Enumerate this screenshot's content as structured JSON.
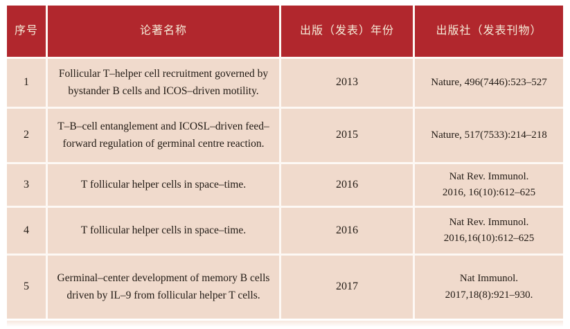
{
  "colors": {
    "header_bg": "#b1272d",
    "header_text": "#f5ecd9",
    "row_bg": "#f0dacc",
    "grid": "#fdf8f4",
    "body_text": "#211a14"
  },
  "table": {
    "columns": [
      {
        "label": "序号"
      },
      {
        "label": "论著名称"
      },
      {
        "label": "出版（发表）年份"
      },
      {
        "label": "出版社（发表刊物）"
      }
    ],
    "rows": [
      {
        "index": "1",
        "title": "Follicular T–helper cell recruitment governed by bystander B cells and ICOS–driven motility.",
        "year": "2013",
        "publisher": "Nature, 496(7446):523–527"
      },
      {
        "index": "2",
        "title": "T–B–cell entanglement and ICOSL–driven feed–forward regulation of germinal centre reaction.",
        "year": "2015",
        "publisher": "Nature, 517(7533):214–218"
      },
      {
        "index": "3",
        "title": "T follicular helper cells in space–time.",
        "year": "2016",
        "publisher": "Nat Rev. Immunol.\n2016, 16(10):612–625"
      },
      {
        "index": "4",
        "title": "T follicular helper cells in space–time.",
        "year": "2016",
        "publisher": "Nat Rev. Immunol.\n2016,16(10):612–625"
      },
      {
        "index": "5",
        "title": "Germinal–center development of memory B cells driven by IL–9 from follicular helper T cells.",
        "year": "2017",
        "publisher": "Nat Immunol.\n2017,18(8):921–930."
      }
    ]
  }
}
